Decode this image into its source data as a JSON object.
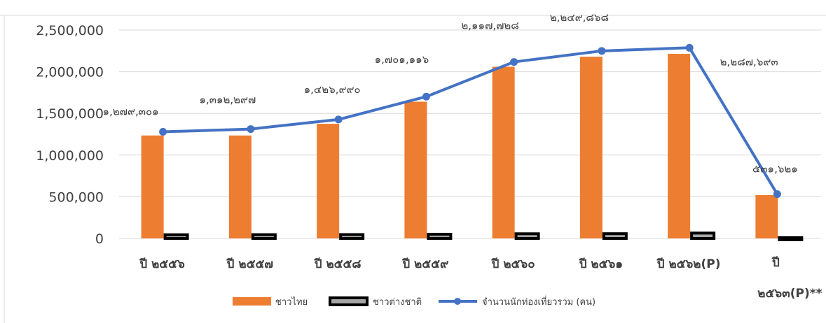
{
  "chart_data": {
    "type": "bar",
    "categories": [
      "ปี ๒๕๕๖",
      "ปี ๒๕๕๗",
      "ปี ๒๕๕๘",
      "ปี ๒๕๕๙",
      "ปี ๒๕๖๐",
      "ปี ๒๕๖๑",
      "ปี ๒๕๖๒(P)",
      "ปี ๒๕๖๓(P)**"
    ],
    "series": [
      {
        "name": "ชาวไทย",
        "kind": "bar",
        "color": "#ED7D31",
        "values": [
          1235000,
          1235000,
          1375000,
          1640000,
          2060000,
          2180000,
          2215000,
          520000
        ]
      },
      {
        "name": "ชาวต่างชาติ",
        "kind": "bar",
        "color": "#A6A6A6",
        "outline": "#000000",
        "values": [
          44000,
          45000,
          46000,
          50000,
          56000,
          57000,
          64000,
          9000
        ]
      },
      {
        "name": "จำนวนนักท่องเที่ยวรวม (คน)",
        "kind": "line",
        "color": "#4472C4",
        "values": [
          1279301,
          1312297,
          1426990,
          1701116,
          2117728,
          2249868,
          2287693,
          531621
        ],
        "labels": [
          "๑,๒๗๙,๓๐๑",
          "๑,๓๑๒,๒๙๗",
          "๑,๔๒๖,๙๙๐",
          "๑,๗๐๑,๑๑๖",
          "๒,๑๑๗,๗๒๘",
          "๒,๒๔๙,๘๖๘",
          "๒,๒๘๗,๖๙๓",
          "๕๓๑,๖๒๑"
        ]
      }
    ],
    "ylim": [
      0,
      2500000
    ],
    "yticks": [
      "0",
      "500,000",
      "1,000,000",
      "1,500,000",
      "2,000,000",
      "2,500,000"
    ],
    "ytick_values": [
      0,
      500000,
      1000000,
      1500000,
      2000000,
      2500000
    ],
    "title": "",
    "xlabel": "",
    "ylabel": "",
    "grid": true,
    "legend_position": "bottom"
  }
}
